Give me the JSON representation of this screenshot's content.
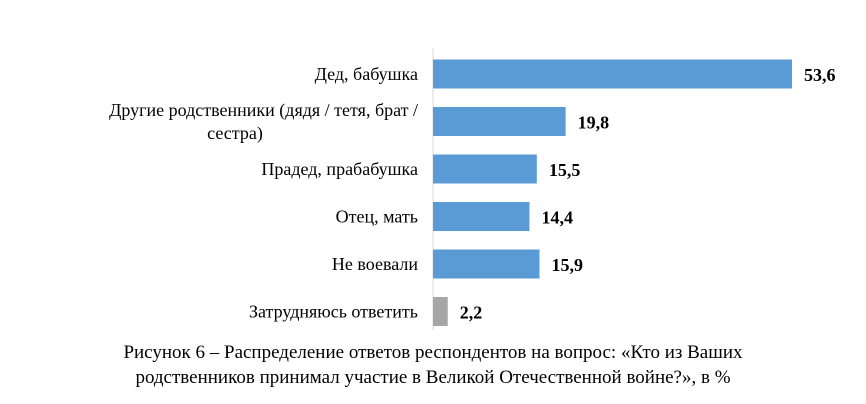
{
  "chart_data": {
    "type": "bar",
    "orientation": "horizontal",
    "categories": [
      [
        "Дед, бабушка"
      ],
      [
        "Другие родственники (дядя / тетя, брат /",
        "сестра)"
      ],
      [
        "Прадед, прабабушка"
      ],
      [
        "Отец, мать"
      ],
      [
        "Не воевали"
      ],
      [
        "Затрудняюсь ответить"
      ]
    ],
    "values": [
      53.6,
      19.8,
      15.5,
      14.4,
      15.9,
      2.2
    ],
    "value_labels": [
      "53,6",
      "19,8",
      "15,5",
      "14,4",
      "15,9",
      "2,2"
    ],
    "bar_colors": [
      "#5b9bd5",
      "#5b9bd5",
      "#5b9bd5",
      "#5b9bd5",
      "#5b9bd5",
      "#a6a6a6"
    ],
    "xlim": [
      0,
      53.6
    ],
    "grid": false,
    "legend": "none"
  },
  "caption": {
    "line1": "Рисунок 6 – Распределение ответов респондентов на вопрос: «Кто из Ваших",
    "line2": "родственников принимал участие в Великой Отечественной войне?», в %"
  }
}
